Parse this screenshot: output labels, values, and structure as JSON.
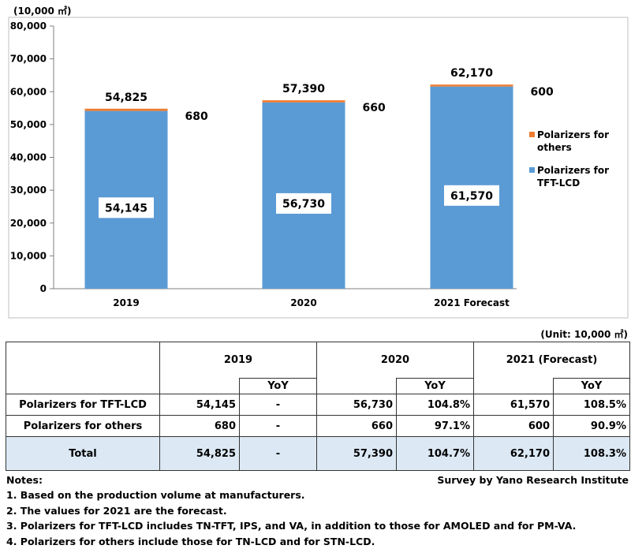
{
  "chart_data": {
    "type": "bar",
    "stacked": true,
    "unit": "(10,000 ㎡)",
    "categories": [
      "2019",
      "2020",
      "2021 Forecast"
    ],
    "series": [
      {
        "name": "Polarizers for TFT-LCD",
        "values": [
          54145,
          56730,
          61570
        ],
        "color": "#5b9bd5"
      },
      {
        "name": "Polarizers for others",
        "values": [
          680,
          660,
          600
        ],
        "color": "#ed7d31"
      }
    ],
    "totals": [
      54825,
      57390,
      62170
    ],
    "ylim": [
      0,
      80000
    ],
    "yticks": [
      0,
      10000,
      20000,
      30000,
      40000,
      50000,
      60000,
      70000,
      80000
    ],
    "ytick_labels": [
      "0",
      "10,000",
      "20,000",
      "30,000",
      "40,000",
      "50,000",
      "60,000",
      "70,000",
      "80,000"
    ],
    "tft_labels": [
      "54,145",
      "56,730",
      "61,570"
    ],
    "other_labels": [
      "680",
      "660",
      "600"
    ],
    "total_labels": [
      "54,825",
      "57,390",
      "62,170"
    ],
    "legend": [
      {
        "line1": "Polarizers for",
        "line2": "others",
        "color": "#ed7d31"
      },
      {
        "line1": "Polarizers for",
        "line2": "TFT-LCD",
        "color": "#5b9bd5"
      }
    ],
    "legend_position": "right",
    "grid": false
  },
  "table": {
    "unit": "(Unit: 10,000 ㎡)",
    "years": [
      "2019",
      "2020",
      "2021 (Forecast)"
    ],
    "yoy": "YoY",
    "rows": [
      {
        "label": "Polarizers for TFT-LCD",
        "v2019": "54,145",
        "y2019": "-",
        "v2020": "56,730",
        "y2020": "104.8%",
        "v2021": "61,570",
        "y2021": "108.5%"
      },
      {
        "label": "Polarizers for others",
        "v2019": "680",
        "y2019": "-",
        "v2020": "660",
        "y2020": "97.1%",
        "v2021": "600",
        "y2021": "90.9%"
      },
      {
        "label": "Total",
        "v2019": "54,825",
        "y2019": "-",
        "v2020": "57,390",
        "y2020": "104.7%",
        "v2021": "62,170",
        "y2021": "108.3%"
      }
    ]
  },
  "notes": {
    "heading": "Notes:",
    "lines": [
      "1. Based on the production volume at manufacturers.",
      "2. The values for 2021 are the forecast.",
      "3.  Polarizers for TFT-LCD includes TN-TFT, IPS, and VA, in addition to those for AMOLED and for PM-VA.",
      "4. Polarizers for others include those for TN-LCD and for STN-LCD."
    ]
  },
  "source": "Survey by Yano Research Institute"
}
